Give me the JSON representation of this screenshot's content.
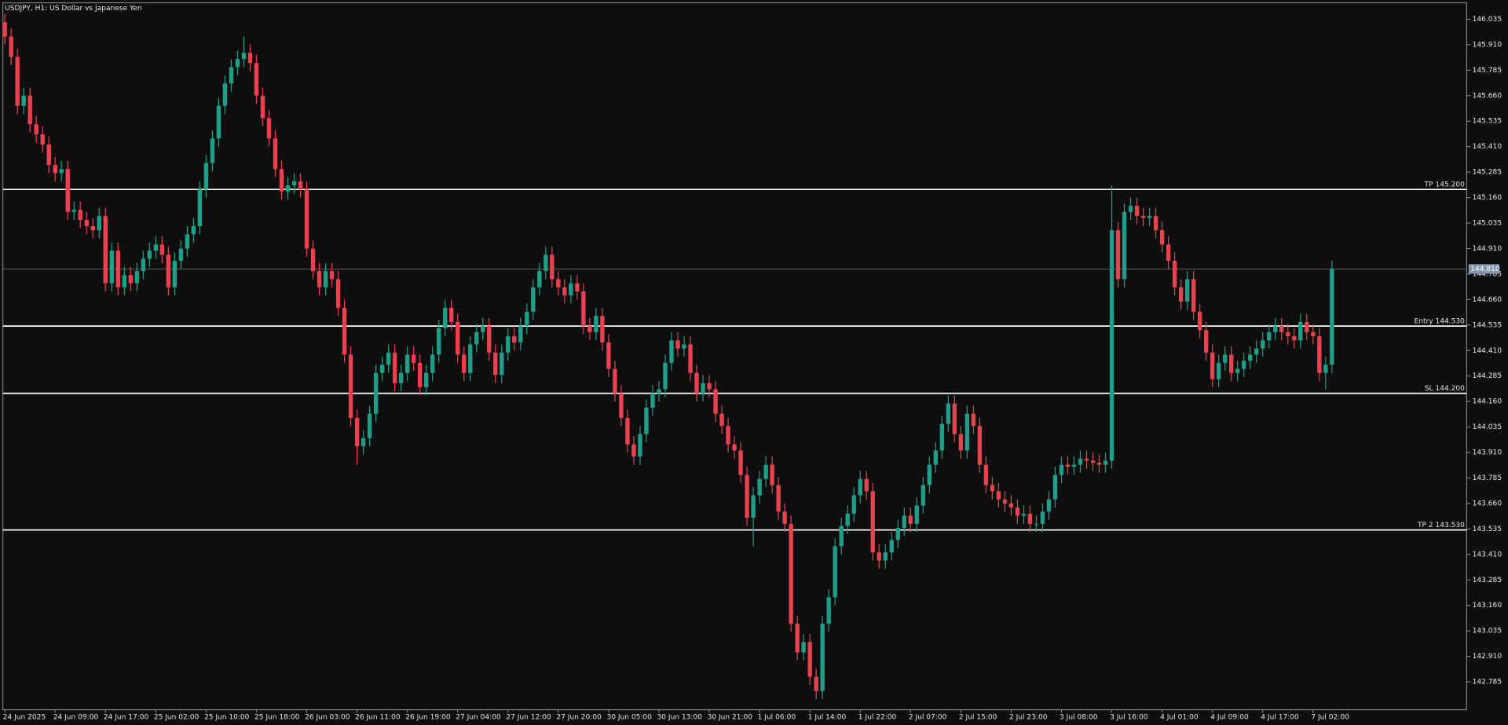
{
  "chart_data": {
    "type": "candlestick",
    "title": "USDJPY, H1:  US Dollar vs Japanese Yen",
    "up_color": "#1f9e89",
    "down_color": "#e8424f",
    "level_color": "#ffffff",
    "price_line_color": "#6b6b6b",
    "price_tag_color": "#8496ad",
    "categories": [
      "24 Jun 2025",
      null,
      null,
      null,
      null,
      null,
      null,
      null,
      "24 Jun 09:00",
      null,
      null,
      null,
      null,
      null,
      null,
      null,
      "24 Jun 17:00",
      null,
      null,
      null,
      null,
      null,
      null,
      null,
      "25 Jun 02:00",
      null,
      null,
      null,
      null,
      null,
      null,
      null,
      "25 Jun 10:00",
      null,
      null,
      null,
      null,
      null,
      null,
      null,
      "25 Jun 18:00",
      null,
      null,
      null,
      null,
      null,
      null,
      null,
      "26 Jun 03:00",
      null,
      null,
      null,
      null,
      null,
      null,
      null,
      "26 Jun 11:00",
      null,
      null,
      null,
      null,
      null,
      null,
      null,
      "26 Jun 19:00",
      null,
      null,
      null,
      null,
      null,
      null,
      null,
      "27 Jun 04:00",
      null,
      null,
      null,
      null,
      null,
      null,
      null,
      "27 Jun 12:00",
      null,
      null,
      null,
      null,
      null,
      null,
      null,
      "27 Jun 20:00",
      null,
      null,
      null,
      null,
      null,
      null,
      null,
      "30 Jun 05:00",
      null,
      null,
      null,
      null,
      null,
      null,
      null,
      "30 Jun 13:00",
      null,
      null,
      null,
      null,
      null,
      null,
      null,
      "30 Jun 21:00",
      null,
      null,
      null,
      null,
      null,
      null,
      null,
      "1 Jul 06:00",
      null,
      null,
      null,
      null,
      null,
      null,
      null,
      "1 Jul 14:00",
      null,
      null,
      null,
      null,
      null,
      null,
      null,
      "1 Jul 22:00",
      null,
      null,
      null,
      null,
      null,
      null,
      null,
      "2 Jul 07:00",
      null,
      null,
      null,
      null,
      null,
      null,
      null,
      "2 Jul 15:00",
      null,
      null,
      null,
      null,
      null,
      null,
      null,
      "2 Jul 23:00",
      null,
      null,
      null,
      null,
      null,
      null,
      null,
      "3 Jul 08:00",
      null,
      null,
      null,
      null,
      null,
      null,
      null,
      "3 Jul 16:00",
      null,
      null,
      null,
      null,
      null,
      null,
      null,
      "4 Jul 01:00",
      null,
      null,
      null,
      null,
      null,
      null,
      null,
      "4 Jul 09:00",
      null,
      null,
      null,
      null,
      null,
      null,
      null,
      "4 Jul 17:00",
      null,
      null,
      null,
      null,
      null,
      null,
      null,
      "7 Jul 02:00",
      null,
      null,
      null
    ],
    "open": [
      146.02,
      145.95,
      145.85,
      145.61,
      145.66,
      145.52,
      145.47,
      145.42,
      145.32,
      145.28,
      145.3,
      145.09,
      145.1,
      145.05,
      145.02,
      145.0,
      145.07,
      144.74,
      144.9,
      144.72,
      144.78,
      144.74,
      144.8,
      144.86,
      144.9,
      144.93,
      144.88,
      144.72,
      144.85,
      144.91,
      144.98,
      145.02,
      145.2,
      145.33,
      145.45,
      145.61,
      145.72,
      145.8,
      145.84,
      145.87,
      145.82,
      145.66,
      145.55,
      145.45,
      145.3,
      145.19,
      145.22,
      145.24,
      145.2,
      144.91,
      144.8,
      144.72,
      144.8,
      144.76,
      144.62,
      144.39,
      144.08,
      143.94,
      143.98,
      144.1,
      144.3,
      144.34,
      144.4,
      144.25,
      144.3,
      144.39,
      144.35,
      144.23,
      144.3,
      144.39,
      144.52,
      144.62,
      144.55,
      144.39,
      144.3,
      144.44,
      144.5,
      144.53,
      144.4,
      144.29,
      144.4,
      144.48,
      144.45,
      144.53,
      144.6,
      144.72,
      144.8,
      144.88,
      144.76,
      144.72,
      144.68,
      144.74,
      144.7,
      144.53,
      144.5,
      144.58,
      144.45,
      144.32,
      144.2,
      144.08,
      143.95,
      143.89,
      144.0,
      144.13,
      144.2,
      144.22,
      144.35,
      144.46,
      144.42,
      144.44,
      144.3,
      144.2,
      144.25,
      144.22,
      144.1,
      144.04,
      143.95,
      143.92,
      143.8,
      143.59,
      143.7,
      143.78,
      143.85,
      143.75,
      143.62,
      143.56,
      143.07,
      142.93,
      142.98,
      142.81,
      142.74,
      143.07,
      143.2,
      143.45,
      143.55,
      143.61,
      143.7,
      143.78,
      143.72,
      143.42,
      143.38,
      143.42,
      143.48,
      143.54,
      143.6,
      143.56,
      143.65,
      143.75,
      143.85,
      143.92,
      144.05,
      144.15,
      144.0,
      143.92,
      144.1,
      144.04,
      143.85,
      143.75,
      143.72,
      143.68,
      143.66,
      143.64,
      143.6,
      143.61,
      143.56,
      143.56,
      143.62,
      143.68,
      143.8,
      143.85,
      143.84,
      143.85,
      143.88,
      143.87,
      143.86,
      143.85,
      143.87,
      145.0,
      144.76,
      145.09,
      145.12,
      145.07,
      145.06,
      145.07,
      145.0,
      144.93,
      144.85,
      144.72,
      144.65,
      144.76,
      144.6,
      144.51,
      144.4,
      144.27,
      144.35,
      144.39,
      144.3,
      144.32,
      144.36,
      144.39,
      144.42,
      144.46,
      144.5,
      144.53,
      144.5,
      144.48,
      144.46,
      144.55,
      144.5,
      144.48,
      144.3,
      144.34
    ],
    "high": [
      146.06,
      145.99,
      145.89,
      145.7,
      145.7,
      145.56,
      145.51,
      145.46,
      145.36,
      145.34,
      145.34,
      145.14,
      145.14,
      145.09,
      145.06,
      145.11,
      145.11,
      144.94,
      144.94,
      144.82,
      144.82,
      144.84,
      144.9,
      144.94,
      144.97,
      144.97,
      144.92,
      144.89,
      144.95,
      145.02,
      145.06,
      145.24,
      145.37,
      145.49,
      145.65,
      145.76,
      145.84,
      145.88,
      145.95,
      145.91,
      145.86,
      145.7,
      145.59,
      145.49,
      145.34,
      145.26,
      145.28,
      145.28,
      145.24,
      144.95,
      144.84,
      144.84,
      144.84,
      144.8,
      144.66,
      144.43,
      144.12,
      144.02,
      144.14,
      144.34,
      144.38,
      144.44,
      144.44,
      144.34,
      144.43,
      144.43,
      144.39,
      144.34,
      144.43,
      144.56,
      144.66,
      144.66,
      144.59,
      144.43,
      144.48,
      144.54,
      144.57,
      144.57,
      144.44,
      144.44,
      144.52,
      144.52,
      144.57,
      144.64,
      144.76,
      144.84,
      144.92,
      144.92,
      144.8,
      144.76,
      144.78,
      144.78,
      144.74,
      144.57,
      144.62,
      144.62,
      144.49,
      144.36,
      144.24,
      144.12,
      143.99,
      144.04,
      144.17,
      144.24,
      144.26,
      144.39,
      144.5,
      144.5,
      144.48,
      144.48,
      144.34,
      144.29,
      144.29,
      144.26,
      144.14,
      144.08,
      143.99,
      143.96,
      143.84,
      143.74,
      143.82,
      143.89,
      143.89,
      143.79,
      143.66,
      143.6,
      143.11,
      143.02,
      143.02,
      142.85,
      143.11,
      143.24,
      143.49,
      143.59,
      143.65,
      143.74,
      143.82,
      143.82,
      143.76,
      143.46,
      143.46,
      143.52,
      143.58,
      143.64,
      143.64,
      143.69,
      143.79,
      143.89,
      143.96,
      144.09,
      144.19,
      144.19,
      144.04,
      144.14,
      144.14,
      144.08,
      143.89,
      143.79,
      143.76,
      143.72,
      143.7,
      143.68,
      143.65,
      143.65,
      143.6,
      143.66,
      143.72,
      143.84,
      143.89,
      143.89,
      143.89,
      143.92,
      143.92,
      143.91,
      143.9,
      143.91,
      145.22,
      145.04,
      145.13,
      145.16,
      145.16,
      145.11,
      145.11,
      145.11,
      145.04,
      144.97,
      144.89,
      144.76,
      144.8,
      144.8,
      144.64,
      144.55,
      144.44,
      144.39,
      144.43,
      144.43,
      144.36,
      144.4,
      144.43,
      144.46,
      144.5,
      144.54,
      144.57,
      144.57,
      144.54,
      144.52,
      144.59,
      144.59,
      144.54,
      144.52,
      144.38,
      144.85
    ],
    "low": [
      145.91,
      145.81,
      145.57,
      145.57,
      145.48,
      145.43,
      145.38,
      145.28,
      145.24,
      145.24,
      145.05,
      145.05,
      145.01,
      144.98,
      144.96,
      144.96,
      144.7,
      144.7,
      144.68,
      144.68,
      144.7,
      144.7,
      144.76,
      144.82,
      144.86,
      144.84,
      144.68,
      144.68,
      144.81,
      144.87,
      144.94,
      144.98,
      145.16,
      145.29,
      145.41,
      145.57,
      145.68,
      145.76,
      145.8,
      145.78,
      145.62,
      145.51,
      145.41,
      145.26,
      145.15,
      145.15,
      145.18,
      145.16,
      144.87,
      144.76,
      144.68,
      144.68,
      144.72,
      144.58,
      144.35,
      144.04,
      143.85,
      143.9,
      143.94,
      144.06,
      144.26,
      144.3,
      144.21,
      144.21,
      144.26,
      144.31,
      144.19,
      144.19,
      144.26,
      144.35,
      144.48,
      144.51,
      144.35,
      144.26,
      144.26,
      144.4,
      144.46,
      144.36,
      144.25,
      144.25,
      144.36,
      144.41,
      144.41,
      144.49,
      144.56,
      144.68,
      144.76,
      144.72,
      144.68,
      144.64,
      144.64,
      144.66,
      144.49,
      144.46,
      144.46,
      144.41,
      144.28,
      144.16,
      144.04,
      143.91,
      143.85,
      143.85,
      143.96,
      144.09,
      144.16,
      144.18,
      144.31,
      144.38,
      144.38,
      144.26,
      144.16,
      144.16,
      144.18,
      144.06,
      144.0,
      143.91,
      143.88,
      143.76,
      143.55,
      143.45,
      143.66,
      143.74,
      143.71,
      143.58,
      143.52,
      143.03,
      142.89,
      142.89,
      142.77,
      142.7,
      142.7,
      143.03,
      143.16,
      143.41,
      143.51,
      143.57,
      143.66,
      143.68,
      143.38,
      143.34,
      143.34,
      143.38,
      143.44,
      143.5,
      143.52,
      143.52,
      143.61,
      143.71,
      143.81,
      143.88,
      144.01,
      143.96,
      143.88,
      143.88,
      144.0,
      143.81,
      143.71,
      143.68,
      143.64,
      143.62,
      143.6,
      143.56,
      143.56,
      143.52,
      143.52,
      143.52,
      143.58,
      143.64,
      143.76,
      143.8,
      143.8,
      143.81,
      143.83,
      143.82,
      143.81,
      143.81,
      143.83,
      144.72,
      144.72,
      145.05,
      145.03,
      145.02,
      145.02,
      144.96,
      144.89,
      144.81,
      144.68,
      144.61,
      144.61,
      144.56,
      144.47,
      144.36,
      144.23,
      144.23,
      144.31,
      144.26,
      144.26,
      144.28,
      144.32,
      144.35,
      144.38,
      144.42,
      144.46,
      144.46,
      144.44,
      144.42,
      144.42,
      144.46,
      144.44,
      144.26,
      144.22,
      144.3
    ],
    "close": [
      145.95,
      145.85,
      145.61,
      145.66,
      145.52,
      145.47,
      145.42,
      145.32,
      145.28,
      145.3,
      145.09,
      145.1,
      145.05,
      145.02,
      145.0,
      145.07,
      144.74,
      144.9,
      144.72,
      144.78,
      144.74,
      144.8,
      144.86,
      144.9,
      144.93,
      144.88,
      144.72,
      144.85,
      144.91,
      144.98,
      145.02,
      145.2,
      145.33,
      145.45,
      145.61,
      145.72,
      145.8,
      145.84,
      145.87,
      145.82,
      145.66,
      145.55,
      145.45,
      145.3,
      145.19,
      145.22,
      145.24,
      145.2,
      144.91,
      144.8,
      144.72,
      144.8,
      144.76,
      144.62,
      144.39,
      144.08,
      143.94,
      143.98,
      144.1,
      144.3,
      144.34,
      144.4,
      144.25,
      144.3,
      144.39,
      144.35,
      144.23,
      144.3,
      144.39,
      144.52,
      144.62,
      144.55,
      144.39,
      144.3,
      144.44,
      144.5,
      144.53,
      144.4,
      144.29,
      144.4,
      144.48,
      144.45,
      144.53,
      144.6,
      144.72,
      144.8,
      144.88,
      144.76,
      144.72,
      144.68,
      144.74,
      144.7,
      144.53,
      144.5,
      144.58,
      144.45,
      144.32,
      144.2,
      144.08,
      143.95,
      143.89,
      144.0,
      144.13,
      144.2,
      144.22,
      144.35,
      144.46,
      144.42,
      144.44,
      144.3,
      144.2,
      144.25,
      144.22,
      144.1,
      144.04,
      143.95,
      143.92,
      143.8,
      143.59,
      143.7,
      143.78,
      143.85,
      143.75,
      143.62,
      143.56,
      143.07,
      142.93,
      142.98,
      142.81,
      142.74,
      143.07,
      143.2,
      143.45,
      143.55,
      143.61,
      143.7,
      143.78,
      143.72,
      143.42,
      143.38,
      143.42,
      143.48,
      143.54,
      143.6,
      143.56,
      143.65,
      143.75,
      143.85,
      143.92,
      144.05,
      144.15,
      144.0,
      143.92,
      144.1,
      144.04,
      143.85,
      143.75,
      143.72,
      143.68,
      143.66,
      143.64,
      143.6,
      143.61,
      143.56,
      143.56,
      143.62,
      143.68,
      143.8,
      143.85,
      143.84,
      143.85,
      143.88,
      143.87,
      143.86,
      143.85,
      143.87,
      145.0,
      144.76,
      145.09,
      145.12,
      145.07,
      145.06,
      145.07,
      145.0,
      144.93,
      144.85,
      144.72,
      144.65,
      144.76,
      144.6,
      144.51,
      144.4,
      144.27,
      144.35,
      144.39,
      144.3,
      144.32,
      144.36,
      144.39,
      144.42,
      144.46,
      144.5,
      144.53,
      144.5,
      144.48,
      144.46,
      144.55,
      144.5,
      144.48,
      144.3,
      144.34,
      144.81
    ],
    "ylim": [
      142.648,
      146.115
    ],
    "yticks": [
      146.035,
      {
        "value": 145.91,
        "label": "145.910"
      },
      145.785,
      {
        "value": 145.66,
        "label": "145.660"
      },
      145.535,
      {
        "value": 145.41,
        "label": "145.410"
      },
      145.285,
      {
        "value": 145.16,
        "label": "145.160"
      },
      145.035,
      {
        "value": 144.91,
        "label": "144.910"
      },
      144.785,
      {
        "value": 144.66,
        "label": "144.660"
      },
      144.535,
      {
        "value": 144.41,
        "label": "144.410"
      },
      144.285,
      {
        "value": 144.16,
        "label": "144.160"
      },
      144.035,
      {
        "value": 143.91,
        "label": "143.910"
      },
      143.785,
      {
        "value": 143.66,
        "label": "143.660"
      },
      143.535,
      {
        "value": 143.41,
        "label": "143.410"
      },
      143.285,
      {
        "value": 143.16,
        "label": "143.160"
      },
      143.035,
      {
        "value": 142.91,
        "label": "142.910"
      },
      142.785
    ],
    "levels": [
      {
        "label": "TP 145.200",
        "value": 145.2
      },
      {
        "label": "Entry 144.530",
        "value": 144.53
      },
      {
        "label": "SL 144.200",
        "value": 144.2
      },
      {
        "label": "TP 2 143.530",
        "value": 143.53
      }
    ],
    "current_price": {
      "value": 144.81,
      "label": "144.810"
    }
  }
}
